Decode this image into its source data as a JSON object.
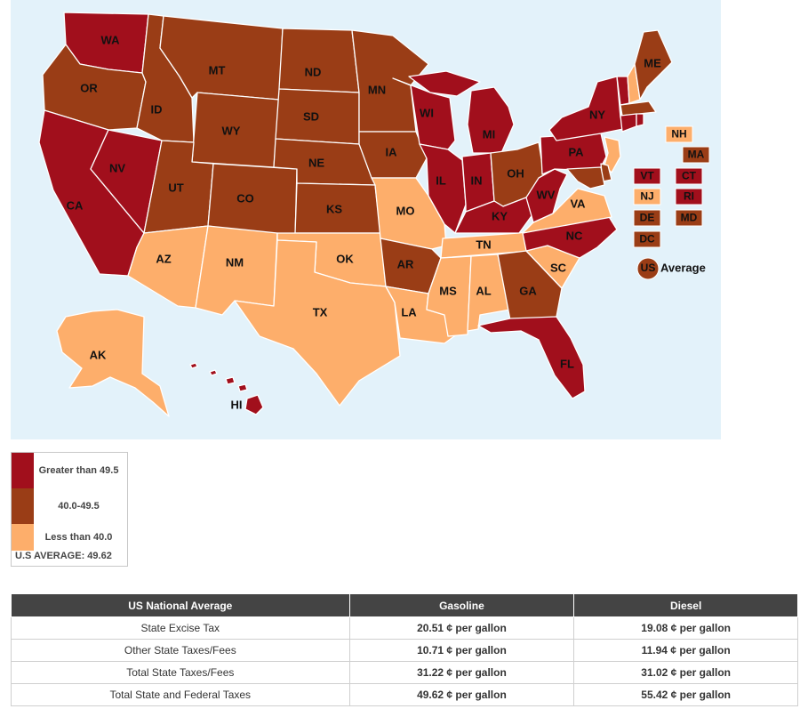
{
  "colors": {
    "high": "#a10f1c",
    "mid": "#9a3d16",
    "low": "#fdae6b",
    "water": "#e3f2fa",
    "table_header": "#444444"
  },
  "map": {
    "states": [
      {
        "abbr": "WA",
        "cat": "high"
      },
      {
        "abbr": "OR",
        "cat": "mid"
      },
      {
        "abbr": "CA",
        "cat": "high"
      },
      {
        "abbr": "NV",
        "cat": "high"
      },
      {
        "abbr": "ID",
        "cat": "mid"
      },
      {
        "abbr": "MT",
        "cat": "mid"
      },
      {
        "abbr": "WY",
        "cat": "mid"
      },
      {
        "abbr": "UT",
        "cat": "mid"
      },
      {
        "abbr": "CO",
        "cat": "mid"
      },
      {
        "abbr": "AZ",
        "cat": "low"
      },
      {
        "abbr": "NM",
        "cat": "low"
      },
      {
        "abbr": "ND",
        "cat": "mid"
      },
      {
        "abbr": "SD",
        "cat": "mid"
      },
      {
        "abbr": "NE",
        "cat": "mid"
      },
      {
        "abbr": "KS",
        "cat": "mid"
      },
      {
        "abbr": "OK",
        "cat": "low"
      },
      {
        "abbr": "TX",
        "cat": "low"
      },
      {
        "abbr": "MN",
        "cat": "mid"
      },
      {
        "abbr": "IA",
        "cat": "mid"
      },
      {
        "abbr": "MO",
        "cat": "low"
      },
      {
        "abbr": "AR",
        "cat": "mid"
      },
      {
        "abbr": "LA",
        "cat": "low"
      },
      {
        "abbr": "WI",
        "cat": "high"
      },
      {
        "abbr": "IL",
        "cat": "high"
      },
      {
        "abbr": "MI",
        "cat": "high"
      },
      {
        "abbr": "IN",
        "cat": "high"
      },
      {
        "abbr": "OH",
        "cat": "mid"
      },
      {
        "abbr": "KY",
        "cat": "high"
      },
      {
        "abbr": "TN",
        "cat": "low"
      },
      {
        "abbr": "MS",
        "cat": "low"
      },
      {
        "abbr": "AL",
        "cat": "low"
      },
      {
        "abbr": "GA",
        "cat": "mid"
      },
      {
        "abbr": "FL",
        "cat": "high"
      },
      {
        "abbr": "SC",
        "cat": "low"
      },
      {
        "abbr": "NC",
        "cat": "high"
      },
      {
        "abbr": "VA",
        "cat": "low"
      },
      {
        "abbr": "WV",
        "cat": "high"
      },
      {
        "abbr": "PA",
        "cat": "high"
      },
      {
        "abbr": "NY",
        "cat": "high"
      },
      {
        "abbr": "ME",
        "cat": "mid"
      },
      {
        "abbr": "AK",
        "cat": "low"
      },
      {
        "abbr": "HI",
        "cat": "high"
      }
    ],
    "small_states": [
      {
        "abbr": "NH",
        "cat": "low"
      },
      {
        "abbr": "MA",
        "cat": "mid"
      },
      {
        "abbr": "VT",
        "cat": "high"
      },
      {
        "abbr": "CT",
        "cat": "high"
      },
      {
        "abbr": "NJ",
        "cat": "low"
      },
      {
        "abbr": "RI",
        "cat": "high"
      },
      {
        "abbr": "DE",
        "cat": "mid"
      },
      {
        "abbr": "MD",
        "cat": "mid"
      },
      {
        "abbr": "DC",
        "cat": "mid"
      }
    ],
    "us_marker": {
      "abbr": "US",
      "label": "Average",
      "cat": "mid"
    }
  },
  "legend": {
    "items": [
      {
        "label": "Greater than 49.5",
        "cat": "high"
      },
      {
        "label": "40.0-49.5",
        "cat": "mid"
      },
      {
        "label": "Less than 40.0",
        "cat": "low"
      }
    ],
    "average": "U.S AVERAGE: 49.62"
  },
  "table": {
    "headers": [
      "US National Average",
      "Gasoline",
      "Diesel"
    ],
    "rows": [
      {
        "label": "State Excise Tax",
        "gasoline": "20.51 ¢ per gallon",
        "diesel": "19.08 ¢ per gallon"
      },
      {
        "label": "Other State Taxes/Fees",
        "gasoline": "10.71 ¢ per gallon",
        "diesel": "11.94 ¢ per gallon"
      },
      {
        "label": "Total State Taxes/Fees",
        "gasoline": "31.22 ¢ per gallon",
        "diesel": "31.02 ¢ per gallon"
      },
      {
        "label": "Total State and Federal Taxes",
        "gasoline": "49.62 ¢ per gallon",
        "diesel": "55.42 ¢ per gallon"
      }
    ]
  }
}
